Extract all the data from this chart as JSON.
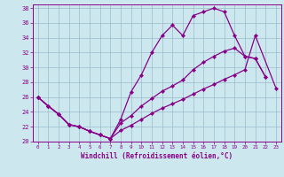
{
  "xlabel": "Windchill (Refroidissement éolien,°C)",
  "xlim": [
    -0.5,
    23.5
  ],
  "ylim": [
    20,
    38.5
  ],
  "yticks": [
    20,
    22,
    24,
    26,
    28,
    30,
    32,
    34,
    36,
    38
  ],
  "xticks": [
    0,
    1,
    2,
    3,
    4,
    5,
    6,
    7,
    8,
    9,
    10,
    11,
    12,
    13,
    14,
    15,
    16,
    17,
    18,
    19,
    20,
    21,
    22,
    23
  ],
  "bg_color": "#cce8ee",
  "line_color": "#880088",
  "grid_color": "#99bbcc",
  "line1_x": [
    0,
    1,
    2,
    3,
    4,
    5,
    6,
    7,
    8,
    9,
    10,
    11,
    12,
    13,
    14,
    15,
    16,
    17,
    18,
    19,
    20,
    21,
    22
  ],
  "line1_y": [
    26.0,
    24.8,
    23.7,
    22.3,
    22.0,
    21.4,
    20.9,
    20.4,
    23.0,
    26.7,
    29.0,
    32.0,
    34.3,
    35.7,
    34.3,
    37.0,
    37.5,
    38.0,
    37.5,
    34.3,
    31.5,
    31.2,
    28.7
  ],
  "line2_x": [
    0,
    1,
    2,
    3,
    4,
    5,
    6,
    7,
    8,
    9,
    10,
    11,
    12,
    13,
    14,
    15,
    16,
    17,
    18,
    19,
    20,
    21,
    22
  ],
  "line2_y": [
    26.0,
    24.8,
    23.7,
    22.3,
    22.0,
    21.4,
    20.9,
    20.4,
    22.5,
    23.5,
    24.8,
    25.8,
    26.8,
    27.5,
    28.3,
    29.7,
    30.7,
    31.5,
    32.2,
    32.6,
    31.5,
    31.2,
    28.7
  ],
  "line3_x": [
    0,
    1,
    2,
    3,
    4,
    5,
    6,
    7,
    8,
    9,
    10,
    11,
    12,
    13,
    14,
    15,
    16,
    17,
    18,
    19,
    20,
    21,
    23
  ],
  "line3_y": [
    26.0,
    24.8,
    23.7,
    22.3,
    22.0,
    21.4,
    20.9,
    20.4,
    21.5,
    22.2,
    23.0,
    23.8,
    24.5,
    25.1,
    25.7,
    26.4,
    27.1,
    27.7,
    28.4,
    29.0,
    29.7,
    34.3,
    27.2
  ]
}
